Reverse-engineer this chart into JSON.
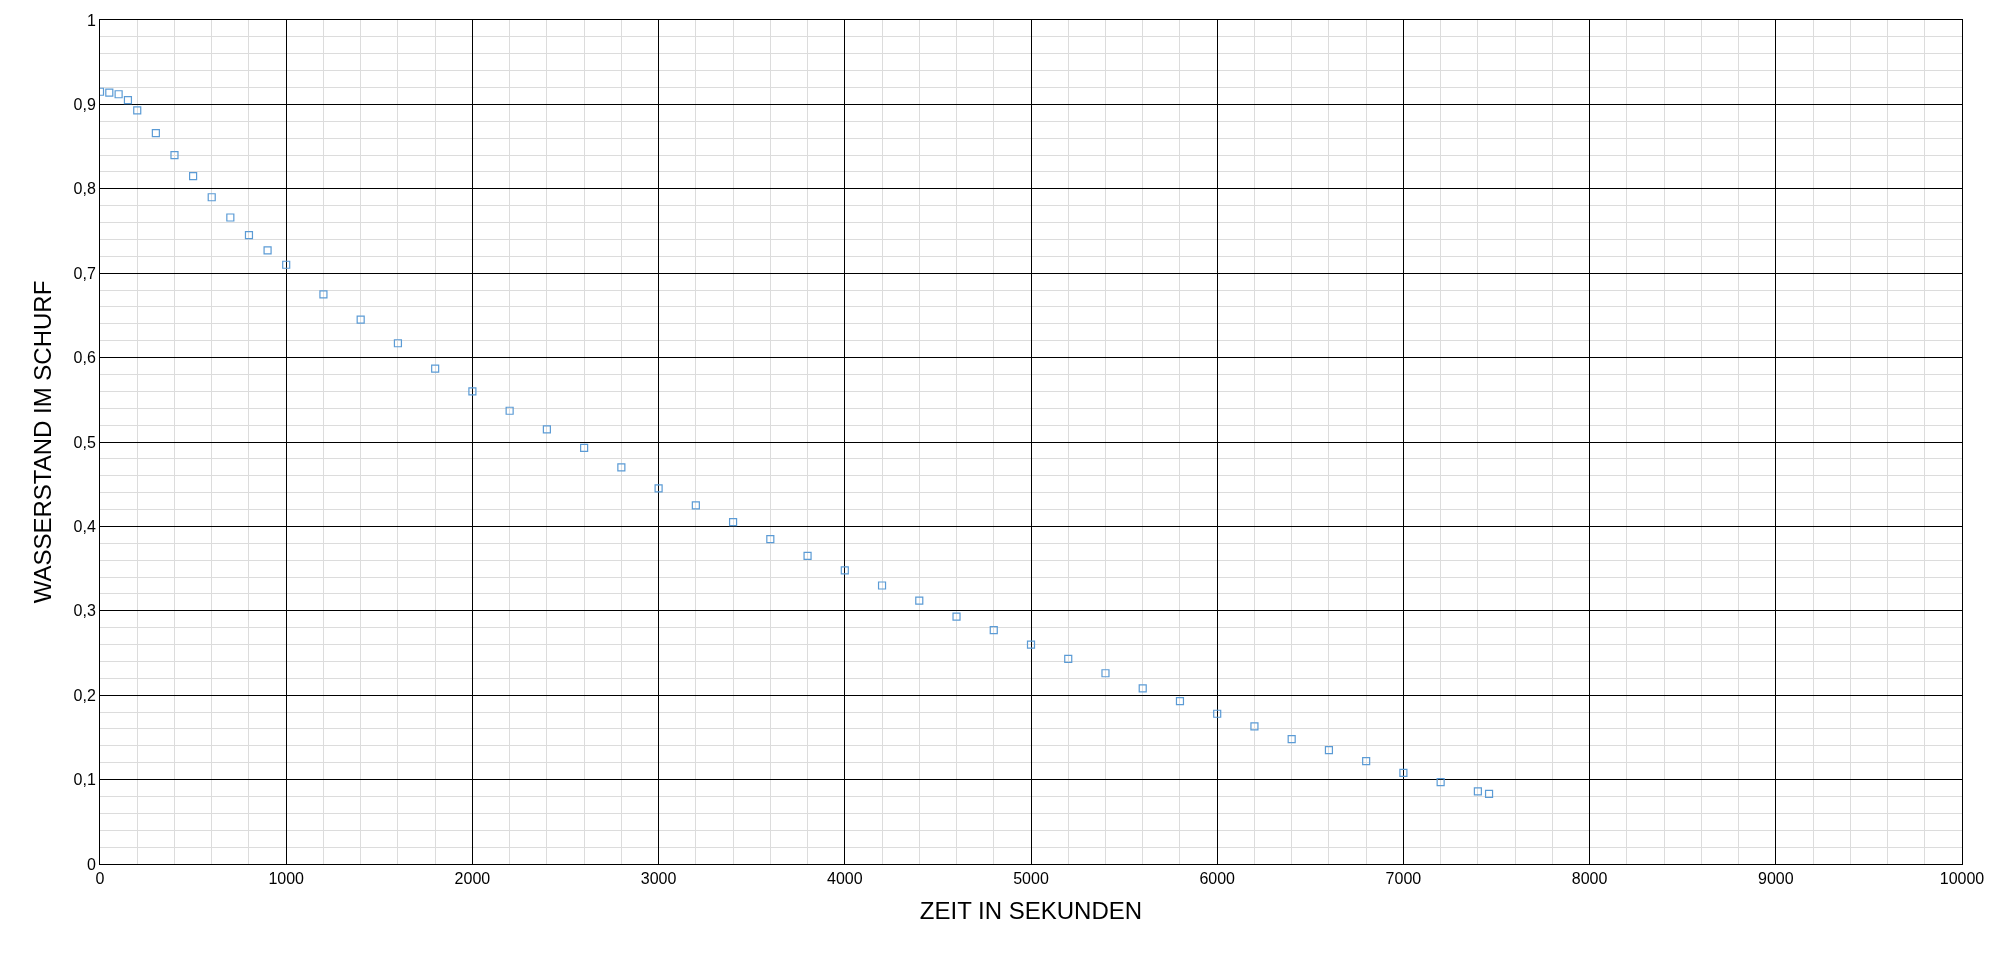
{
  "chart_data": {
    "type": "scatter",
    "xlabel": "ZEIT IN SEKUNDEN",
    "ylabel": "WASSERSTAND IM SCHURF",
    "x": [
      0,
      50,
      100,
      150,
      200,
      300,
      400,
      500,
      600,
      700,
      800,
      900,
      1000,
      1200,
      1400,
      1600,
      1800,
      2000,
      2200,
      2400,
      2600,
      2800,
      3000,
      3200,
      3400,
      3600,
      3800,
      4000,
      4200,
      4400,
      4600,
      4800,
      5000,
      5200,
      5400,
      5600,
      5800,
      6000,
      6200,
      6400,
      6600,
      6800,
      7000,
      7200,
      7400,
      7460
    ],
    "series": [
      {
        "color": "#5b9bd5",
        "values": [
          0.915,
          0.914,
          0.912,
          0.905,
          0.893,
          0.866,
          0.84,
          0.815,
          0.79,
          0.766,
          0.745,
          0.727,
          0.71,
          0.675,
          0.645,
          0.617,
          0.587,
          0.56,
          0.537,
          0.515,
          0.493,
          0.47,
          0.445,
          0.425,
          0.405,
          0.385,
          0.365,
          0.348,
          0.33,
          0.312,
          0.293,
          0.277,
          0.26,
          0.243,
          0.226,
          0.208,
          0.193,
          0.178,
          0.163,
          0.148,
          0.135,
          0.122,
          0.108,
          0.097,
          0.086,
          0.083
        ]
      }
    ],
    "xlim": [
      0,
      10000
    ],
    "xticks": [
      0,
      1000,
      2000,
      3000,
      4000,
      5000,
      6000,
      7000,
      8000,
      9000,
      10000
    ],
    "ylim": [
      0,
      1
    ],
    "yticks": [
      {
        "value": 0,
        "label": "0"
      },
      {
        "value": 0.1,
        "label": "0,1"
      },
      {
        "value": 0.2,
        "label": "0,2"
      },
      {
        "value": 0.3,
        "label": "0,3"
      },
      {
        "value": 0.4,
        "label": "0,4"
      },
      {
        "value": 0.5,
        "label": "0,5"
      },
      {
        "value": 0.6,
        "label": "0,6"
      },
      {
        "value": 0.7,
        "label": "0,7"
      },
      {
        "value": 0.8,
        "label": "0,8"
      },
      {
        "value": 0.9,
        "label": "0,9"
      },
      {
        "value": 1,
        "label": "1"
      }
    ],
    "grid": true,
    "marker": "square",
    "legend": false
  }
}
